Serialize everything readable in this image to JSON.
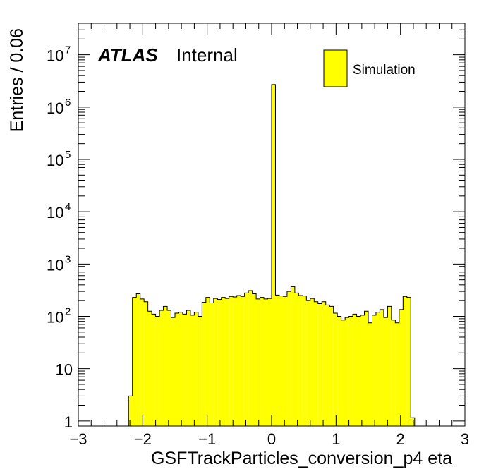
{
  "chart_data": {
    "type": "bar",
    "xlabel": "GSFTrackParticles_conversion_p4 eta",
    "ylabel": "Entries / 0.06",
    "xlim": [
      -3,
      3
    ],
    "ylim": [
      0.8,
      40000000
    ],
    "yscale": "log",
    "bin_width": 0.06,
    "fill_color": "#ffff00",
    "line_color": "#000000",
    "x_ticks": [
      {
        "value": -3,
        "label": "−3"
      },
      {
        "value": -2,
        "label": "−2"
      },
      {
        "value": -1,
        "label": "−1"
      },
      {
        "value": 0,
        "label": "0"
      },
      {
        "value": 1,
        "label": "1"
      },
      {
        "value": 2,
        "label": "2"
      },
      {
        "value": 3,
        "label": "3"
      }
    ],
    "y_ticks": [
      {
        "value": 1,
        "base": "1",
        "exp": ""
      },
      {
        "value": 10,
        "base": "10",
        "exp": ""
      },
      {
        "value": 100,
        "base": "10",
        "exp": "2"
      },
      {
        "value": 1000,
        "base": "10",
        "exp": "3"
      },
      {
        "value": 10000,
        "base": "10",
        "exp": "4"
      },
      {
        "value": 100000,
        "base": "10",
        "exp": "5"
      },
      {
        "value": 1000000,
        "base": "10",
        "exp": "6"
      },
      {
        "value": 10000000,
        "base": "10",
        "exp": "7"
      }
    ],
    "label_atlas": "ATLAS",
    "label_status": "Internal",
    "legend": [
      {
        "name": "Simulation",
        "color": "#ffff00"
      }
    ],
    "legend_position": "top-right",
    "series": [
      {
        "name": "Simulation",
        "bins": [
          {
            "x": -2.19,
            "y": 3
          },
          {
            "x": -2.13,
            "y": 230
          },
          {
            "x": -2.07,
            "y": 270
          },
          {
            "x": -2.01,
            "y": 215
          },
          {
            "x": -1.95,
            "y": 190
          },
          {
            "x": -1.89,
            "y": 125
          },
          {
            "x": -1.83,
            "y": 110
          },
          {
            "x": -1.77,
            "y": 100
          },
          {
            "x": -1.71,
            "y": 130
          },
          {
            "x": -1.65,
            "y": 155
          },
          {
            "x": -1.59,
            "y": 130
          },
          {
            "x": -1.53,
            "y": 95
          },
          {
            "x": -1.47,
            "y": 115
          },
          {
            "x": -1.41,
            "y": 120
          },
          {
            "x": -1.35,
            "y": 110
          },
          {
            "x": -1.29,
            "y": 130
          },
          {
            "x": -1.23,
            "y": 105
          },
          {
            "x": -1.17,
            "y": 120
          },
          {
            "x": -1.11,
            "y": 100
          },
          {
            "x": -1.05,
            "y": 185
          },
          {
            "x": -0.99,
            "y": 230
          },
          {
            "x": -0.93,
            "y": 180
          },
          {
            "x": -0.87,
            "y": 220
          },
          {
            "x": -0.81,
            "y": 210
          },
          {
            "x": -0.75,
            "y": 230
          },
          {
            "x": -0.69,
            "y": 220
          },
          {
            "x": -0.63,
            "y": 240
          },
          {
            "x": -0.57,
            "y": 235
          },
          {
            "x": -0.51,
            "y": 250
          },
          {
            "x": -0.45,
            "y": 240
          },
          {
            "x": -0.39,
            "y": 280
          },
          {
            "x": -0.33,
            "y": 310
          },
          {
            "x": -0.27,
            "y": 270
          },
          {
            "x": -0.21,
            "y": 215
          },
          {
            "x": -0.15,
            "y": 230
          },
          {
            "x": -0.09,
            "y": 215
          },
          {
            "x": -0.03,
            "y": 220
          },
          {
            "x": 0.03,
            "y": 2700000
          },
          {
            "x": 0.09,
            "y": 255
          },
          {
            "x": 0.15,
            "y": 245
          },
          {
            "x": 0.21,
            "y": 240
          },
          {
            "x": 0.27,
            "y": 300
          },
          {
            "x": 0.33,
            "y": 370
          },
          {
            "x": 0.39,
            "y": 280
          },
          {
            "x": 0.45,
            "y": 250
          },
          {
            "x": 0.51,
            "y": 245
          },
          {
            "x": 0.57,
            "y": 200
          },
          {
            "x": 0.63,
            "y": 220
          },
          {
            "x": 0.69,
            "y": 190
          },
          {
            "x": 0.75,
            "y": 175
          },
          {
            "x": 0.81,
            "y": 190
          },
          {
            "x": 0.87,
            "y": 165
          },
          {
            "x": 0.93,
            "y": 155
          },
          {
            "x": 0.99,
            "y": 115
          },
          {
            "x": 1.05,
            "y": 100
          },
          {
            "x": 1.11,
            "y": 85
          },
          {
            "x": 1.17,
            "y": 95
          },
          {
            "x": 1.23,
            "y": 100
          },
          {
            "x": 1.29,
            "y": 110
          },
          {
            "x": 1.35,
            "y": 100
          },
          {
            "x": 1.41,
            "y": 105
          },
          {
            "x": 1.47,
            "y": 125
          },
          {
            "x": 1.53,
            "y": 75
          },
          {
            "x": 1.59,
            "y": 105
          },
          {
            "x": 1.65,
            "y": 120
          },
          {
            "x": 1.71,
            "y": 135
          },
          {
            "x": 1.77,
            "y": 95
          },
          {
            "x": 1.83,
            "y": 155
          },
          {
            "x": 1.89,
            "y": 85
          },
          {
            "x": 1.95,
            "y": 75
          },
          {
            "x": 2.01,
            "y": 135
          },
          {
            "x": 2.07,
            "y": 240
          },
          {
            "x": 2.13,
            "y": 230
          },
          {
            "x": 2.19,
            "y": 1.15
          }
        ]
      }
    ]
  }
}
